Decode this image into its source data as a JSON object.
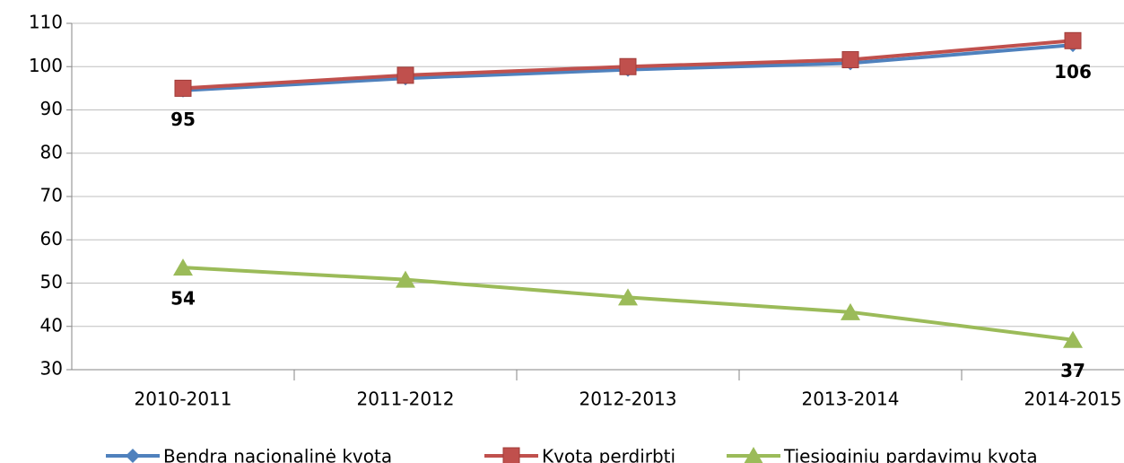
{
  "chart_data": {
    "type": "line",
    "categories": [
      "2010-2011",
      "2011-2012",
      "2012-2013",
      "2013-2014",
      "2014-2015"
    ],
    "series": [
      {
        "name": "Bendra nacionalinė kvota",
        "color": "#4f81bd",
        "marker": "diamond",
        "values": [
          94.5,
          97.3,
          99.3,
          100.8,
          105
        ]
      },
      {
        "name": "Kvota perdirbti",
        "color": "#c0504d",
        "marker": "square",
        "values": [
          95,
          98,
          100,
          101.6,
          106
        ],
        "value_labels": [
          95,
          null,
          null,
          null,
          106
        ]
      },
      {
        "name": "Tiesioginių pardavimų kvota",
        "color": "#9bbb59",
        "marker": "triangle",
        "values": [
          53.6,
          50.8,
          46.7,
          43.3,
          36.9
        ],
        "value_labels": [
          54,
          null,
          null,
          null,
          37
        ]
      }
    ],
    "ylim": [
      30,
      110
    ],
    "yticks": [
      30,
      40,
      50,
      60,
      70,
      80,
      90,
      100,
      110
    ],
    "grid": true,
    "legend": "bottom"
  }
}
